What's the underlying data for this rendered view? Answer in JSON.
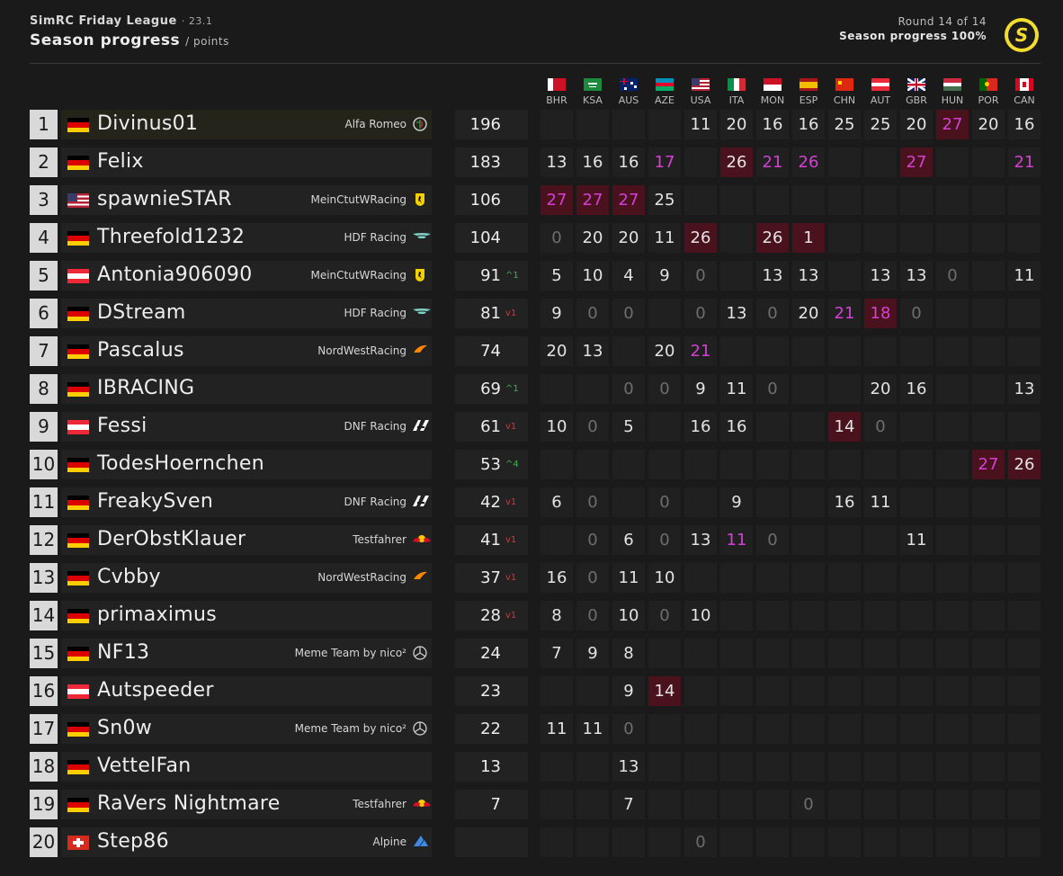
{
  "header": {
    "league": "SimRC Friday League",
    "season": "· 23.1",
    "title": "Season progress",
    "unit": "/ points",
    "round": "Round 14 of 14",
    "progress": "Season progress 100%",
    "logo_letter": "S"
  },
  "races": [
    {
      "code": "BHR",
      "flag": "bahrain"
    },
    {
      "code": "KSA",
      "flag": "saudi-arabia"
    },
    {
      "code": "AUS",
      "flag": "australia"
    },
    {
      "code": "AZE",
      "flag": "azerbaijan"
    },
    {
      "code": "USA",
      "flag": "usa"
    },
    {
      "code": "ITA",
      "flag": "italy"
    },
    {
      "code": "MON",
      "flag": "monaco"
    },
    {
      "code": "ESP",
      "flag": "spain"
    },
    {
      "code": "CHN",
      "flag": "china"
    },
    {
      "code": "AUT",
      "flag": "austria"
    },
    {
      "code": "GBR",
      "flag": "uk"
    },
    {
      "code": "HUN",
      "flag": "hungary"
    },
    {
      "code": "POR",
      "flag": "portugal"
    },
    {
      "code": "CAN",
      "flag": "canada"
    }
  ],
  "colors": {
    "highlight_cell": "#4a121d",
    "fastest_lap_text": "#d63fd6",
    "position_up": "#3fb34f",
    "position_down": "#d6353a",
    "logo_yellow": "#f2dd2e"
  },
  "standings": [
    {
      "pos": "1",
      "flag": "germany",
      "name": "Divinus01",
      "team": "Alfa Romeo",
      "team_icon": "alfa-romeo-icon",
      "points": "196",
      "change": "",
      "dir": "",
      "results": [
        null,
        null,
        null,
        null,
        "11",
        "20",
        "16",
        "16",
        "25",
        "25",
        "20",
        "27",
        "20",
        "16"
      ],
      "highlight": [
        11
      ],
      "fastest": [
        11
      ]
    },
    {
      "pos": "2",
      "flag": "germany",
      "name": "Felix",
      "team": "",
      "team_icon": "",
      "points": "183",
      "change": "",
      "dir": "",
      "results": [
        "13",
        "16",
        "16",
        "17",
        null,
        "26",
        "21",
        "26",
        null,
        null,
        "27",
        null,
        null,
        "21"
      ],
      "highlight": [
        5,
        10
      ],
      "fastest": [
        3,
        6,
        7,
        10,
        13
      ]
    },
    {
      "pos": "3",
      "flag": "usa",
      "name": "spawnieSTAR",
      "team": "MeinCtutWRacing",
      "team_icon": "ferrari-icon",
      "points": "106",
      "change": "",
      "dir": "",
      "results": [
        "27",
        "27",
        "27",
        "25",
        null,
        null,
        null,
        null,
        null,
        null,
        null,
        null,
        null,
        null
      ],
      "highlight": [
        0,
        1,
        2
      ],
      "fastest": [
        0,
        1,
        2
      ]
    },
    {
      "pos": "4",
      "flag": "germany",
      "name": "Threefold1232",
      "team": "HDF Racing",
      "team_icon": "aston-martin-icon",
      "points": "104",
      "change": "",
      "dir": "",
      "results": [
        "0",
        "20",
        "20",
        "11",
        "26",
        null,
        "26",
        "1",
        null,
        null,
        null,
        null,
        null,
        null
      ],
      "highlight": [
        4,
        6,
        7
      ],
      "fastest": []
    },
    {
      "pos": "5",
      "flag": "austria",
      "name": "Antonia906090",
      "team": "MeinCtutWRacing",
      "team_icon": "ferrari-icon",
      "points": "91",
      "change": "^1",
      "dir": "up",
      "results": [
        "5",
        "10",
        "4",
        "9",
        "0",
        null,
        "13",
        "13",
        null,
        "13",
        "13",
        "0",
        null,
        "11"
      ],
      "highlight": [],
      "fastest": []
    },
    {
      "pos": "6",
      "flag": "germany",
      "name": "DStream",
      "team": "HDF Racing",
      "team_icon": "aston-martin-icon",
      "points": "81",
      "change": "v1",
      "dir": "down",
      "results": [
        "9",
        "0",
        "0",
        null,
        "0",
        "13",
        "0",
        "20",
        "21",
        "18",
        "0",
        null,
        null,
        null
      ],
      "highlight": [
        9
      ],
      "fastest": [
        8,
        9
      ]
    },
    {
      "pos": "7",
      "flag": "germany",
      "name": "Pascalus",
      "team": "NordWestRacing",
      "team_icon": "mclaren-icon",
      "points": "74",
      "change": "",
      "dir": "",
      "results": [
        "20",
        "13",
        null,
        "20",
        "21",
        null,
        null,
        null,
        null,
        null,
        null,
        null,
        null,
        null
      ],
      "highlight": [],
      "fastest": [
        4
      ]
    },
    {
      "pos": "8",
      "flag": "germany",
      "name": "IBRACING",
      "team": "",
      "team_icon": "",
      "points": "69",
      "change": "^1",
      "dir": "up",
      "results": [
        null,
        null,
        "0",
        "0",
        "9",
        "11",
        "0",
        null,
        null,
        "20",
        "16",
        null,
        null,
        "13"
      ],
      "highlight": [],
      "fastest": []
    },
    {
      "pos": "9",
      "flag": "austria",
      "name": "Fessi",
      "team": "DNF Racing",
      "team_icon": "alphatauri-icon",
      "points": "61",
      "change": "v1",
      "dir": "down",
      "results": [
        "10",
        "0",
        "5",
        null,
        "16",
        "16",
        null,
        null,
        "14",
        "0",
        null,
        null,
        null,
        null
      ],
      "highlight": [
        8
      ],
      "fastest": []
    },
    {
      "pos": "10",
      "flag": "germany",
      "name": "TodesHoernchen",
      "team": "",
      "team_icon": "",
      "points": "53",
      "change": "^4",
      "dir": "up",
      "results": [
        null,
        null,
        null,
        null,
        null,
        null,
        null,
        null,
        null,
        null,
        null,
        null,
        "27",
        "26"
      ],
      "highlight": [
        12,
        13
      ],
      "fastest": [
        12
      ]
    },
    {
      "pos": "11",
      "flag": "germany",
      "name": "FreakySven",
      "team": "DNF Racing",
      "team_icon": "alphatauri-icon",
      "points": "42",
      "change": "v1",
      "dir": "down",
      "results": [
        "6",
        "0",
        null,
        "0",
        null,
        "9",
        null,
        null,
        "16",
        "11",
        null,
        null,
        null,
        null
      ],
      "highlight": [],
      "fastest": []
    },
    {
      "pos": "12",
      "flag": "germany",
      "name": "DerObstKlauer",
      "team": "Testfahrer",
      "team_icon": "red-bull-icon",
      "points": "41",
      "change": "v1",
      "dir": "down",
      "results": [
        null,
        "0",
        "6",
        "0",
        "13",
        "11",
        "0",
        null,
        null,
        null,
        "11",
        null,
        null,
        null
      ],
      "highlight": [],
      "fastest": [
        5
      ]
    },
    {
      "pos": "13",
      "flag": "germany",
      "name": "Cvbby",
      "team": "NordWestRacing",
      "team_icon": "mclaren-icon",
      "points": "37",
      "change": "v1",
      "dir": "down",
      "results": [
        "16",
        "0",
        "11",
        "10",
        null,
        null,
        null,
        null,
        null,
        null,
        null,
        null,
        null,
        null
      ],
      "highlight": [],
      "fastest": []
    },
    {
      "pos": "14",
      "flag": "germany",
      "name": "primaximus",
      "team": "",
      "team_icon": "",
      "points": "28",
      "change": "v1",
      "dir": "down",
      "results": [
        "8",
        "0",
        "10",
        "0",
        "10",
        null,
        null,
        null,
        null,
        null,
        null,
        null,
        null,
        null
      ],
      "highlight": [],
      "fastest": []
    },
    {
      "pos": "15",
      "flag": "germany",
      "name": "NF13",
      "team": "Meme Team by nico²",
      "team_icon": "mercedes-icon",
      "points": "24",
      "change": "",
      "dir": "",
      "results": [
        "7",
        "9",
        "8",
        null,
        null,
        null,
        null,
        null,
        null,
        null,
        null,
        null,
        null,
        null
      ],
      "highlight": [],
      "fastest": []
    },
    {
      "pos": "16",
      "flag": "austria",
      "name": "Autspeeder",
      "team": "",
      "team_icon": "",
      "points": "23",
      "change": "",
      "dir": "",
      "results": [
        null,
        null,
        "9",
        "14",
        null,
        null,
        null,
        null,
        null,
        null,
        null,
        null,
        null,
        null
      ],
      "highlight": [
        3
      ],
      "fastest": []
    },
    {
      "pos": "17",
      "flag": "germany",
      "name": "Sn0w",
      "team": "Meme Team by nico²",
      "team_icon": "mercedes-icon",
      "points": "22",
      "change": "",
      "dir": "",
      "results": [
        "11",
        "11",
        "0",
        null,
        null,
        null,
        null,
        null,
        null,
        null,
        null,
        null,
        null,
        null
      ],
      "highlight": [],
      "fastest": []
    },
    {
      "pos": "18",
      "flag": "germany",
      "name": "VettelFan",
      "team": "",
      "team_icon": "",
      "points": "13",
      "change": "",
      "dir": "",
      "results": [
        null,
        null,
        "13",
        null,
        null,
        null,
        null,
        null,
        null,
        null,
        null,
        null,
        null,
        null
      ],
      "highlight": [],
      "fastest": []
    },
    {
      "pos": "19",
      "flag": "germany",
      "name": "RaVers Nightmare",
      "team": "Testfahrer",
      "team_icon": "red-bull-icon",
      "points": "7",
      "change": "",
      "dir": "",
      "results": [
        null,
        null,
        "7",
        null,
        null,
        null,
        null,
        "0",
        null,
        null,
        null,
        null,
        null,
        null
      ],
      "highlight": [],
      "fastest": []
    },
    {
      "pos": "20",
      "flag": "switzerland",
      "name": "Step86",
      "team": "Alpine",
      "team_icon": "alpine-icon",
      "points": "",
      "change": "",
      "dir": "",
      "results": [
        null,
        null,
        null,
        null,
        "0",
        null,
        null,
        null,
        null,
        null,
        null,
        null,
        null,
        null
      ],
      "highlight": [],
      "fastest": []
    }
  ]
}
